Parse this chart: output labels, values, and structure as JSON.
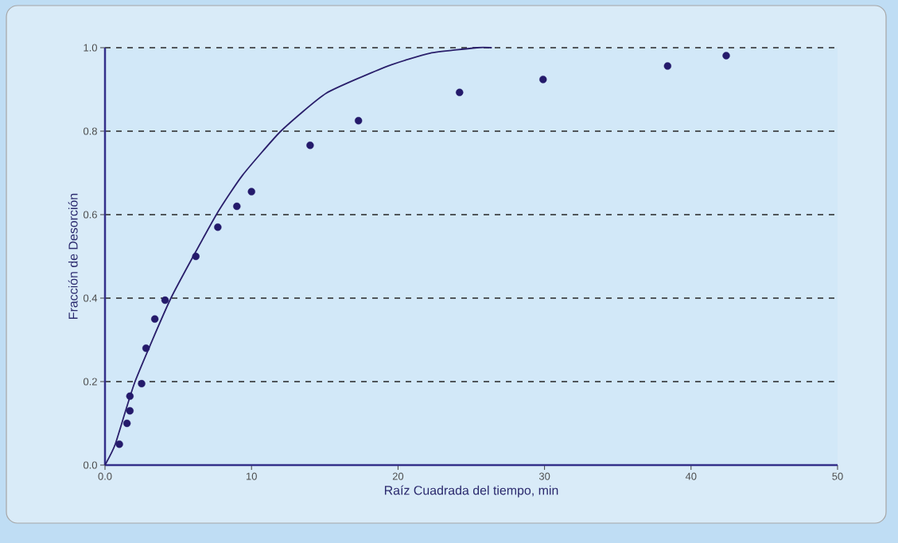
{
  "chart_data": {
    "type": "scatter",
    "xlabel": "Raíz Cuadrada del tiempo, min",
    "ylabel": "Fracción de Desorción",
    "xlim": [
      0,
      50
    ],
    "ylim": [
      0,
      1
    ],
    "xticks": [
      {
        "value": 0,
        "label": "0.0"
      },
      10,
      20,
      30,
      40,
      50
    ],
    "yticks": [
      {
        "value": 0,
        "label": "0.0"
      },
      {
        "value": 0.2,
        "label": "0.2"
      },
      {
        "value": 0.4,
        "label": "0.4"
      },
      {
        "value": 0.6,
        "label": "0.6"
      },
      {
        "value": 0.8,
        "label": "0.8"
      },
      {
        "value": 1,
        "label": "1.0"
      }
    ],
    "grid": "y",
    "series": [
      {
        "color": "#241a6b",
        "marker": "circle",
        "x": [
          0.98,
          1.5,
          1.7,
          1.7,
          2.5,
          2.8,
          3.4,
          4.1,
          6.2,
          7.7,
          9.0,
          10.0,
          14.0,
          17.3,
          24.2,
          29.9,
          38.4,
          42.4
        ],
        "values": [
          0.05,
          0.1,
          0.13,
          0.165,
          0.195,
          0.28,
          0.35,
          0.395,
          0.5,
          0.57,
          0.62,
          0.655,
          0.766,
          0.825,
          0.893,
          0.924,
          0.956,
          0.981
        ]
      },
      {
        "type": "line",
        "color": "#2a1f6b",
        "line_style": "solid",
        "marker": "none",
        "x": [
          0,
          0.7,
          2.05,
          4.5,
          7.6,
          9.4,
          12.0,
          15.1,
          19.3,
          22.2,
          25.4,
          26.4
        ],
        "values": [
          0,
          0.05,
          0.2,
          0.4,
          0.6,
          0.695,
          0.8,
          0.891,
          0.956,
          0.987,
          1.0,
          1.0
        ]
      }
    ]
  }
}
